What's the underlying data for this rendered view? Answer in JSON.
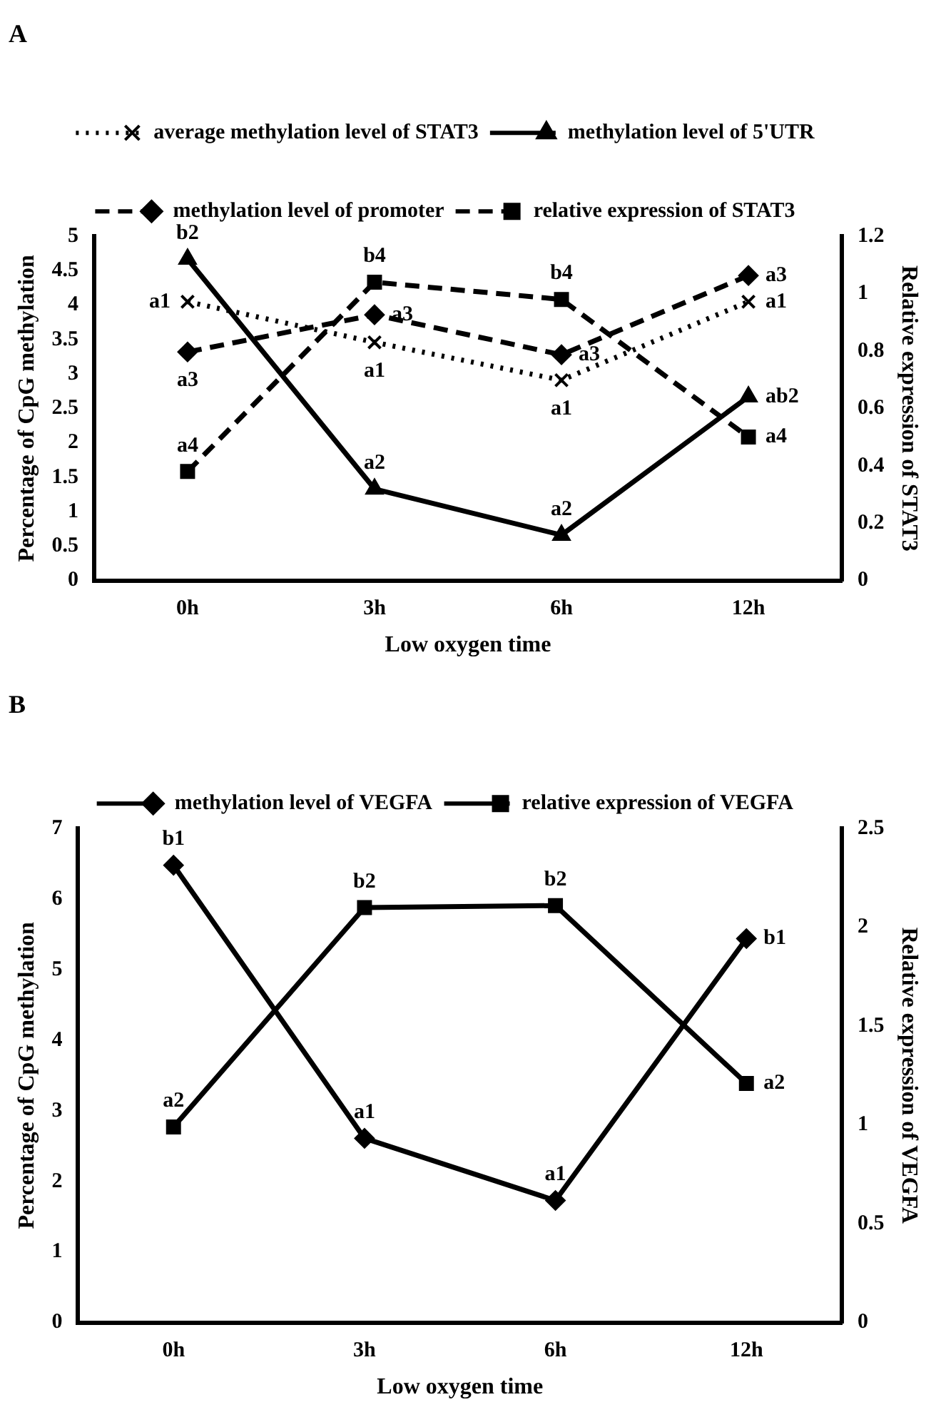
{
  "chart_data": [
    {
      "type": "line",
      "title": "A",
      "xlabel": "Low oxygen time",
      "ylabel": "Percentage of CpG methylation",
      "y2label": "Relative expression of STAT3",
      "categories": [
        "0h",
        "3h",
        "6h",
        "12h"
      ],
      "series": [
        {
          "name": "average methylation level of STAT3",
          "color": "#000000",
          "values": [
            4.05,
            3.46,
            2.91,
            4.05
          ],
          "marker": "cross",
          "line_style": "dotted"
        },
        {
          "name": "methylation level of 5'UTR",
          "color": "#000000",
          "values": [
            4.67,
            1.33,
            0.66,
            2.67
          ],
          "marker": "triangle",
          "line_style": "solid"
        },
        {
          "name": "methylation level of promoter",
          "color": "#000000",
          "values": [
            3.32,
            3.86,
            3.28,
            4.43
          ],
          "marker": "diamond",
          "line_style": "dashed"
        },
        {
          "name": "relative expression of STAT3",
          "color": "#000000",
          "values": [
            0.38,
            1.04,
            0.98,
            0.5
          ],
          "marker": "square",
          "line_style": "dashed",
          "axis": "y2"
        }
      ],
      "ylim": [
        0,
        5
      ],
      "yticks": [
        0,
        0.5,
        1,
        1.5,
        2,
        2.5,
        3,
        3.5,
        4,
        4.5,
        5
      ],
      "y2lim": [
        0,
        1.2
      ],
      "y2ticks": [
        0,
        0.2,
        0.4,
        0.6,
        0.8,
        1,
        1.2
      ],
      "annotations": [
        {
          "text": "b2",
          "x": "0h",
          "y": 4.67
        },
        {
          "text": "a1",
          "x": "0h",
          "y": 4.05
        },
        {
          "text": "a3",
          "x": "0h",
          "y": 3.32
        },
        {
          "text": "a4",
          "x": "0h",
          "y": 1.583
        },
        {
          "text": "b4",
          "x": "3h",
          "y": 4.333
        },
        {
          "text": "a3",
          "x": "3h",
          "y": 3.86
        },
        {
          "text": "a1",
          "x": "3h",
          "y": 3.46
        },
        {
          "text": "a2",
          "x": "3h",
          "y": 1.33
        },
        {
          "text": "b4",
          "x": "6h",
          "y": 4.083
        },
        {
          "text": "a3",
          "x": "6h",
          "y": 3.28
        },
        {
          "text": "a1",
          "x": "6h",
          "y": 2.91
        },
        {
          "text": "a2",
          "x": "6h",
          "y": 0.66
        },
        {
          "text": "a3",
          "x": "12h",
          "y": 4.43
        },
        {
          "text": "a1",
          "x": "12h",
          "y": 4.05
        },
        {
          "text": "ab2",
          "x": "12h",
          "y": 2.67
        },
        {
          "text": "a4",
          "x": "12h",
          "y": 2.083
        }
      ],
      "grid": false,
      "legend": "top"
    },
    {
      "type": "line",
      "title": "B",
      "xlabel": "Low oxygen time",
      "ylabel": "Percentage of CpG methylation",
      "y2label": "Relative expression of VEGFA",
      "categories": [
        "0h",
        "3h",
        "6h",
        "12h"
      ],
      "series": [
        {
          "name": "methylation level of VEGFA",
          "color": "#000000",
          "values": [
            6.48,
            2.61,
            1.73,
            5.44
          ],
          "marker": "diamond",
          "line_style": "solid"
        },
        {
          "name": "relative expression of VEGFA",
          "color": "#000000",
          "values": [
            0.99,
            2.1,
            2.11,
            1.21
          ],
          "marker": "square",
          "line_style": "solid",
          "axis": "y2"
        }
      ],
      "ylim": [
        0,
        7
      ],
      "yticks": [
        0,
        1,
        2,
        3,
        4,
        5,
        6,
        7
      ],
      "y2lim": [
        0,
        2.5
      ],
      "y2ticks": [
        0,
        0.5,
        1,
        1.5,
        2,
        2.5
      ],
      "annotations": [
        {
          "text": "b1",
          "x": "0h",
          "y": 6.48
        },
        {
          "text": "a2",
          "x": "0h",
          "y": 2.772
        },
        {
          "text": "b2",
          "x": "3h",
          "y": 5.88
        },
        {
          "text": "a1",
          "x": "3h",
          "y": 2.61
        },
        {
          "text": "b2",
          "x": "6h",
          "y": 5.908
        },
        {
          "text": "a1",
          "x": "6h",
          "y": 1.73
        },
        {
          "text": "b1",
          "x": "12h",
          "y": 5.44
        },
        {
          "text": "a2",
          "x": "12h",
          "y": 3.388
        }
      ],
      "grid": false,
      "legend": "top"
    }
  ]
}
